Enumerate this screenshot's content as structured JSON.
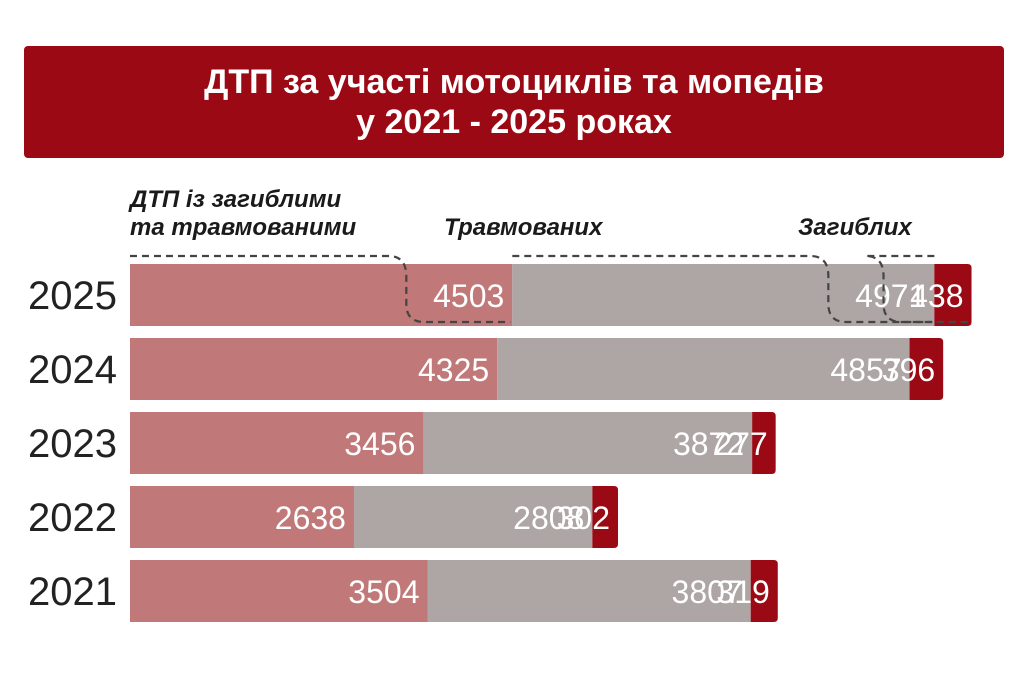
{
  "title": {
    "line1": "ДТП за участі мотоциклів та мопедів",
    "line2": "у 2021 - 2025 роках"
  },
  "chart_data": {
    "type": "bar",
    "orientation": "horizontal",
    "stacked": true,
    "categories": [
      "2025",
      "2024",
      "2023",
      "2022",
      "2021"
    ],
    "series": [
      {
        "name": "ДТП із загиблими та травмованими",
        "values": [
          4503,
          4325,
          3456,
          2638,
          3504
        ],
        "color": "#c07878"
      },
      {
        "name": "Травмованих",
        "values": [
          4971,
          4857,
          3872,
          2808,
          3807
        ],
        "color": "#aea5a5"
      },
      {
        "name": "Загиблих",
        "values": [
          438,
          396,
          277,
          302,
          319
        ],
        "color": "#9b0a14"
      }
    ],
    "legend": {
      "placement": "top",
      "labels": [
        [
          "ДТП із загиблими",
          "та травмованими"
        ],
        [
          "Травмованих"
        ],
        [
          "Загиблих"
        ]
      ]
    },
    "grid": false
  }
}
